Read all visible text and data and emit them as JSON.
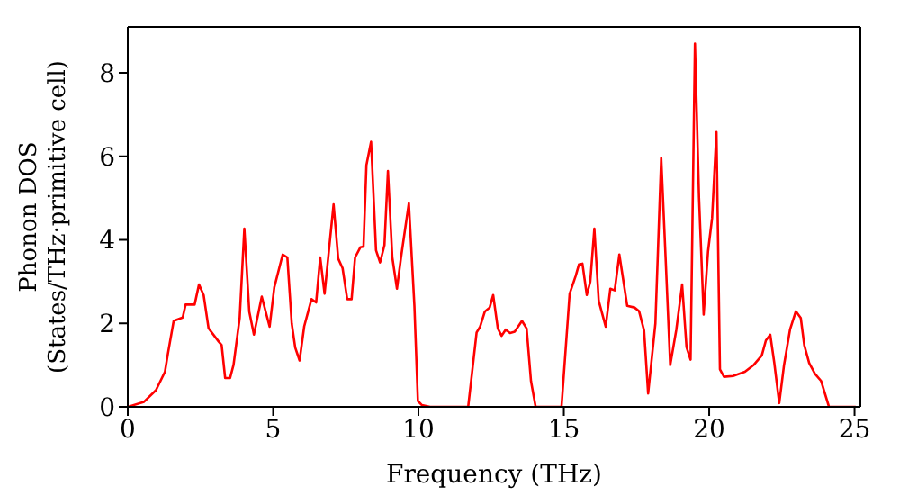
{
  "chart_data": {
    "type": "line",
    "xlabel": "Frequency (THz)",
    "ylabel": "Phonon DOS\n(States/THz·primitive cell)",
    "x": [
      0,
      0.56,
      0.97,
      1.28,
      1.38,
      1.58,
      1.89,
      1.99,
      2.3,
      2.45,
      2.61,
      2.78,
      3.13,
      3.23,
      3.35,
      3.52,
      3.64,
      3.85,
      4.01,
      4.18,
      4.34,
      4.61,
      4.88,
      5.04,
      5.33,
      5.49,
      5.64,
      5.76,
      5.91,
      6.07,
      6.32,
      6.48,
      6.62,
      6.77,
      7.08,
      7.24,
      7.39,
      7.55,
      7.7,
      7.82,
      8.0,
      8.11,
      8.21,
      8.37,
      8.54,
      8.68,
      8.83,
      8.95,
      9.1,
      9.26,
      9.4,
      9.67,
      9.86,
      9.98,
      10.12,
      10.4,
      11.71,
      12.0,
      12.12,
      12.28,
      12.45,
      12.57,
      12.73,
      12.86,
      13.0,
      13.15,
      13.31,
      13.56,
      13.72,
      13.87,
      14.03,
      14.92,
      15.2,
      15.41,
      15.52,
      15.64,
      15.79,
      15.91,
      16.05,
      16.2,
      16.44,
      16.6,
      16.75,
      16.91,
      17.18,
      17.43,
      17.59,
      17.76,
      17.9,
      18.15,
      18.35,
      18.5,
      18.66,
      18.87,
      19.07,
      19.22,
      19.36,
      19.51,
      19.65,
      19.81,
      19.96,
      20.1,
      20.25,
      20.37,
      20.51,
      20.82,
      21.23,
      21.54,
      21.81,
      21.95,
      22.1,
      22.24,
      22.41,
      22.57,
      22.78,
      22.98,
      23.15,
      23.27,
      23.44,
      23.64,
      23.85,
      24.12,
      25.04
    ],
    "series": [
      {
        "color": "#ff0000",
        "values": [
          0,
          0.12,
          0.4,
          0.84,
          1.27,
          2.06,
          2.14,
          2.45,
          2.45,
          2.93,
          2.68,
          1.88,
          1.56,
          1.48,
          0.69,
          0.69,
          1.01,
          2.13,
          4.27,
          2.28,
          1.73,
          2.64,
          1.92,
          2.86,
          3.65,
          3.58,
          2,
          1.42,
          1.11,
          1.93,
          2.58,
          2.5,
          3.58,
          2.71,
          4.85,
          3.55,
          3.32,
          2.58,
          2.58,
          3.58,
          3.82,
          3.84,
          5.79,
          6.35,
          3.75,
          3.46,
          3.87,
          5.65,
          3.58,
          2.83,
          3.58,
          4.88,
          2.42,
          0.14,
          0.04,
          0,
          0,
          1.78,
          1.92,
          2.28,
          2.38,
          2.68,
          1.88,
          1.7,
          1.85,
          1.77,
          1.8,
          2.06,
          1.88,
          0.62,
          0,
          0,
          2.71,
          3.14,
          3.41,
          3.43,
          2.68,
          3,
          4.27,
          2.54,
          1.92,
          2.83,
          2.79,
          3.65,
          2.42,
          2.38,
          2.29,
          1.83,
          0.32,
          2,
          5.96,
          3.58,
          1,
          1.85,
          2.93,
          1.43,
          1.13,
          8.7,
          5.02,
          2.21,
          3.72,
          4.52,
          6.58,
          0.9,
          0.72,
          0.74,
          0.84,
          1.01,
          1.23,
          1.59,
          1.73,
          1.05,
          0.09,
          0.98,
          1.85,
          2.29,
          2.13,
          1.48,
          1.05,
          0.79,
          0.62,
          0,
          0
        ]
      }
    ],
    "xlim": [
      0,
      25.2
    ],
    "xticks": [
      0,
      5,
      10,
      15,
      20,
      25
    ],
    "ylim": [
      0,
      9.1
    ],
    "yticks": [
      0,
      2,
      4,
      6,
      8
    ],
    "grid": false,
    "legend": false,
    "marker": "none",
    "line_style": "solid"
  }
}
